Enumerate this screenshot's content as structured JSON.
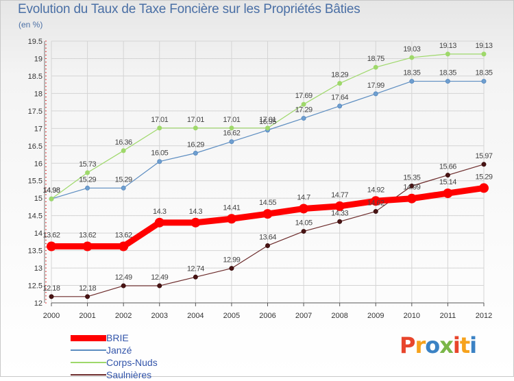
{
  "header": {
    "title": "Evolution du Taux de Taxe Foncière sur les Propriétés Bâties",
    "unit": "(en %)"
  },
  "logo": {
    "text": "Proxiti",
    "colors": [
      "#e8452c",
      "#f6a21c",
      "#3b82c4",
      "#7ab648",
      "#e8452c",
      "#f6a21c",
      "#3b82c4"
    ]
  },
  "chart_data": {
    "type": "line",
    "title": "Evolution du Taux de Taxe Foncière sur les Propriétés Bâties",
    "ylabel": "(en %)",
    "xlabel": "",
    "x": [
      "2000",
      "2001",
      "2002",
      "2003",
      "2004",
      "2005",
      "2006",
      "2007",
      "2008",
      "2009",
      "2010",
      "2011",
      "2012"
    ],
    "ylim": [
      12,
      19.5
    ],
    "yticks": [
      "12",
      "12.5",
      "13",
      "13.5",
      "14",
      "14.5",
      "15",
      "15.5",
      "16",
      "16.5",
      "17",
      "17.5",
      "18",
      "18.5",
      "19",
      "19.5"
    ],
    "grid": true,
    "legend_position": "bottom-left",
    "series": [
      {
        "name": "BRIE",
        "color": "#ff0000",
        "values": [
          13.62,
          13.62,
          13.62,
          14.3,
          14.3,
          14.41,
          14.55,
          14.7,
          14.77,
          14.92,
          14.99,
          15.14,
          15.29
        ],
        "labels": [
          "13.62",
          "13.62",
          "13.62",
          "14.3",
          "14.3",
          "14.41",
          "14.55",
          "14.7",
          "14.77",
          "14.92",
          "14.99",
          "15.14",
          "15.29"
        ]
      },
      {
        "name": "Janzé",
        "color": "#6f9fd0",
        "values": [
          14.98,
          15.29,
          15.29,
          16.05,
          16.29,
          16.62,
          16.95,
          17.29,
          17.64,
          17.99,
          18.35,
          18.35,
          18.35
        ],
        "labels": [
          "14.98",
          "15.29",
          "15.29",
          "16.05",
          "16.29",
          "16.62",
          "16.95",
          "17.29",
          "17.64",
          "17.99",
          "18.35",
          "18.35",
          "18.35"
        ]
      },
      {
        "name": "Corps-Nuds",
        "color": "#9ed86a",
        "values": [
          14.98,
          15.73,
          16.36,
          17.01,
          17.01,
          17.01,
          17.01,
          17.69,
          18.29,
          18.75,
          19.03,
          19.13,
          19.13
        ],
        "labels": [
          "14.98",
          "15.73",
          "16.36",
          "17.01",
          "17.01",
          "17.01",
          "17.01",
          "17.69",
          "18.29",
          "18.75",
          "19.03",
          "19.13",
          "19.13"
        ]
      },
      {
        "name": "Saulnières",
        "color": "#7a3333",
        "values": [
          12.18,
          12.18,
          12.49,
          12.49,
          12.74,
          12.99,
          13.64,
          14.05,
          14.33,
          14.62,
          15.35,
          15.66,
          15.97
        ],
        "labels": [
          "12.18",
          "12.18",
          "12.49",
          "12.49",
          "12.74",
          "12.99",
          "13.64",
          "14.05",
          "14.33",
          "14.62",
          "15.35",
          "15.66",
          "15.97"
        ]
      }
    ]
  }
}
